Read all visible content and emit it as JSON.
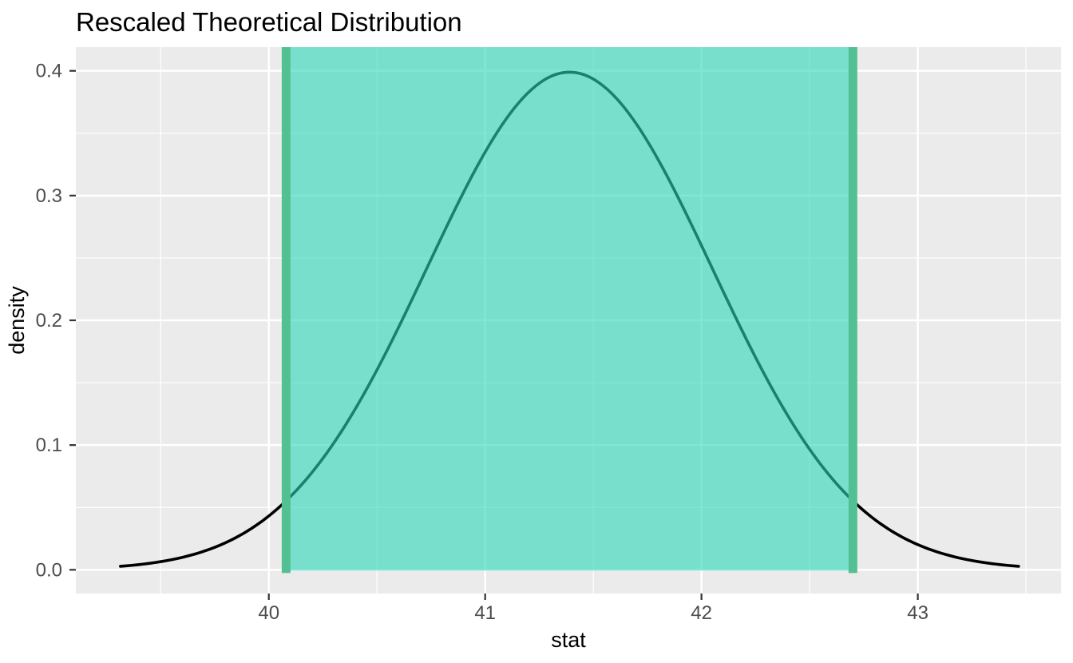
{
  "figure": {
    "background": "#ffffff"
  },
  "chart_data": {
    "type": "line",
    "title": "Rescaled Theoretical Distribution",
    "xlabel": "stat",
    "ylabel": "density",
    "x_tick_values": [
      40,
      41,
      42,
      43
    ],
    "x_tick_labels": [
      "40",
      "41",
      "42",
      "43"
    ],
    "y_tick_values": [
      0.0,
      0.1,
      0.2,
      0.3,
      0.4
    ],
    "y_tick_labels": [
      "0.0",
      "0.1",
      "0.2",
      "0.3",
      "0.4"
    ],
    "x_minor_gridlines": [
      39.5,
      40.5,
      41.5,
      42.5,
      43.5
    ],
    "y_minor_gridlines": [
      0.05,
      0.15,
      0.25,
      0.35
    ],
    "xlim": [
      39.108,
      43.662
    ],
    "ylim": [
      -0.019,
      0.419
    ],
    "grid": "on",
    "legend": "none",
    "curve": {
      "name": "theoretical-density-curve",
      "distribution": "normal_pdf_rescaled",
      "mean": 41.39,
      "sd": 0.659,
      "z_min": -3.15,
      "z_max": 3.15,
      "x_start": 39.31,
      "x_end": 43.46,
      "peak_density": 0.398,
      "color": "#000000",
      "stroke_width": 3.6
    },
    "confidence_interval": {
      "lower": 40.08,
      "upper": 42.7,
      "shade_fill": "rgba(45,215,185,0.6)",
      "endpoint_color": "#53c093",
      "endpoint_stroke_width": 11
    },
    "panel": {
      "background": "#ebebeb",
      "grid_major_color": "#ffffff",
      "grid_minor_color": "#ffffff",
      "grid_major_width": 2.5,
      "grid_minor_width": 1.2
    },
    "ticks": {
      "color": "#333333",
      "length": 8,
      "width": 2.2
    },
    "text_style": {
      "tick_label_color": "#4d4d4d",
      "tick_label_size": 24,
      "axis_label_color": "#000000",
      "axis_label_size": 27,
      "title_color": "#000000",
      "title_size": 33
    }
  }
}
